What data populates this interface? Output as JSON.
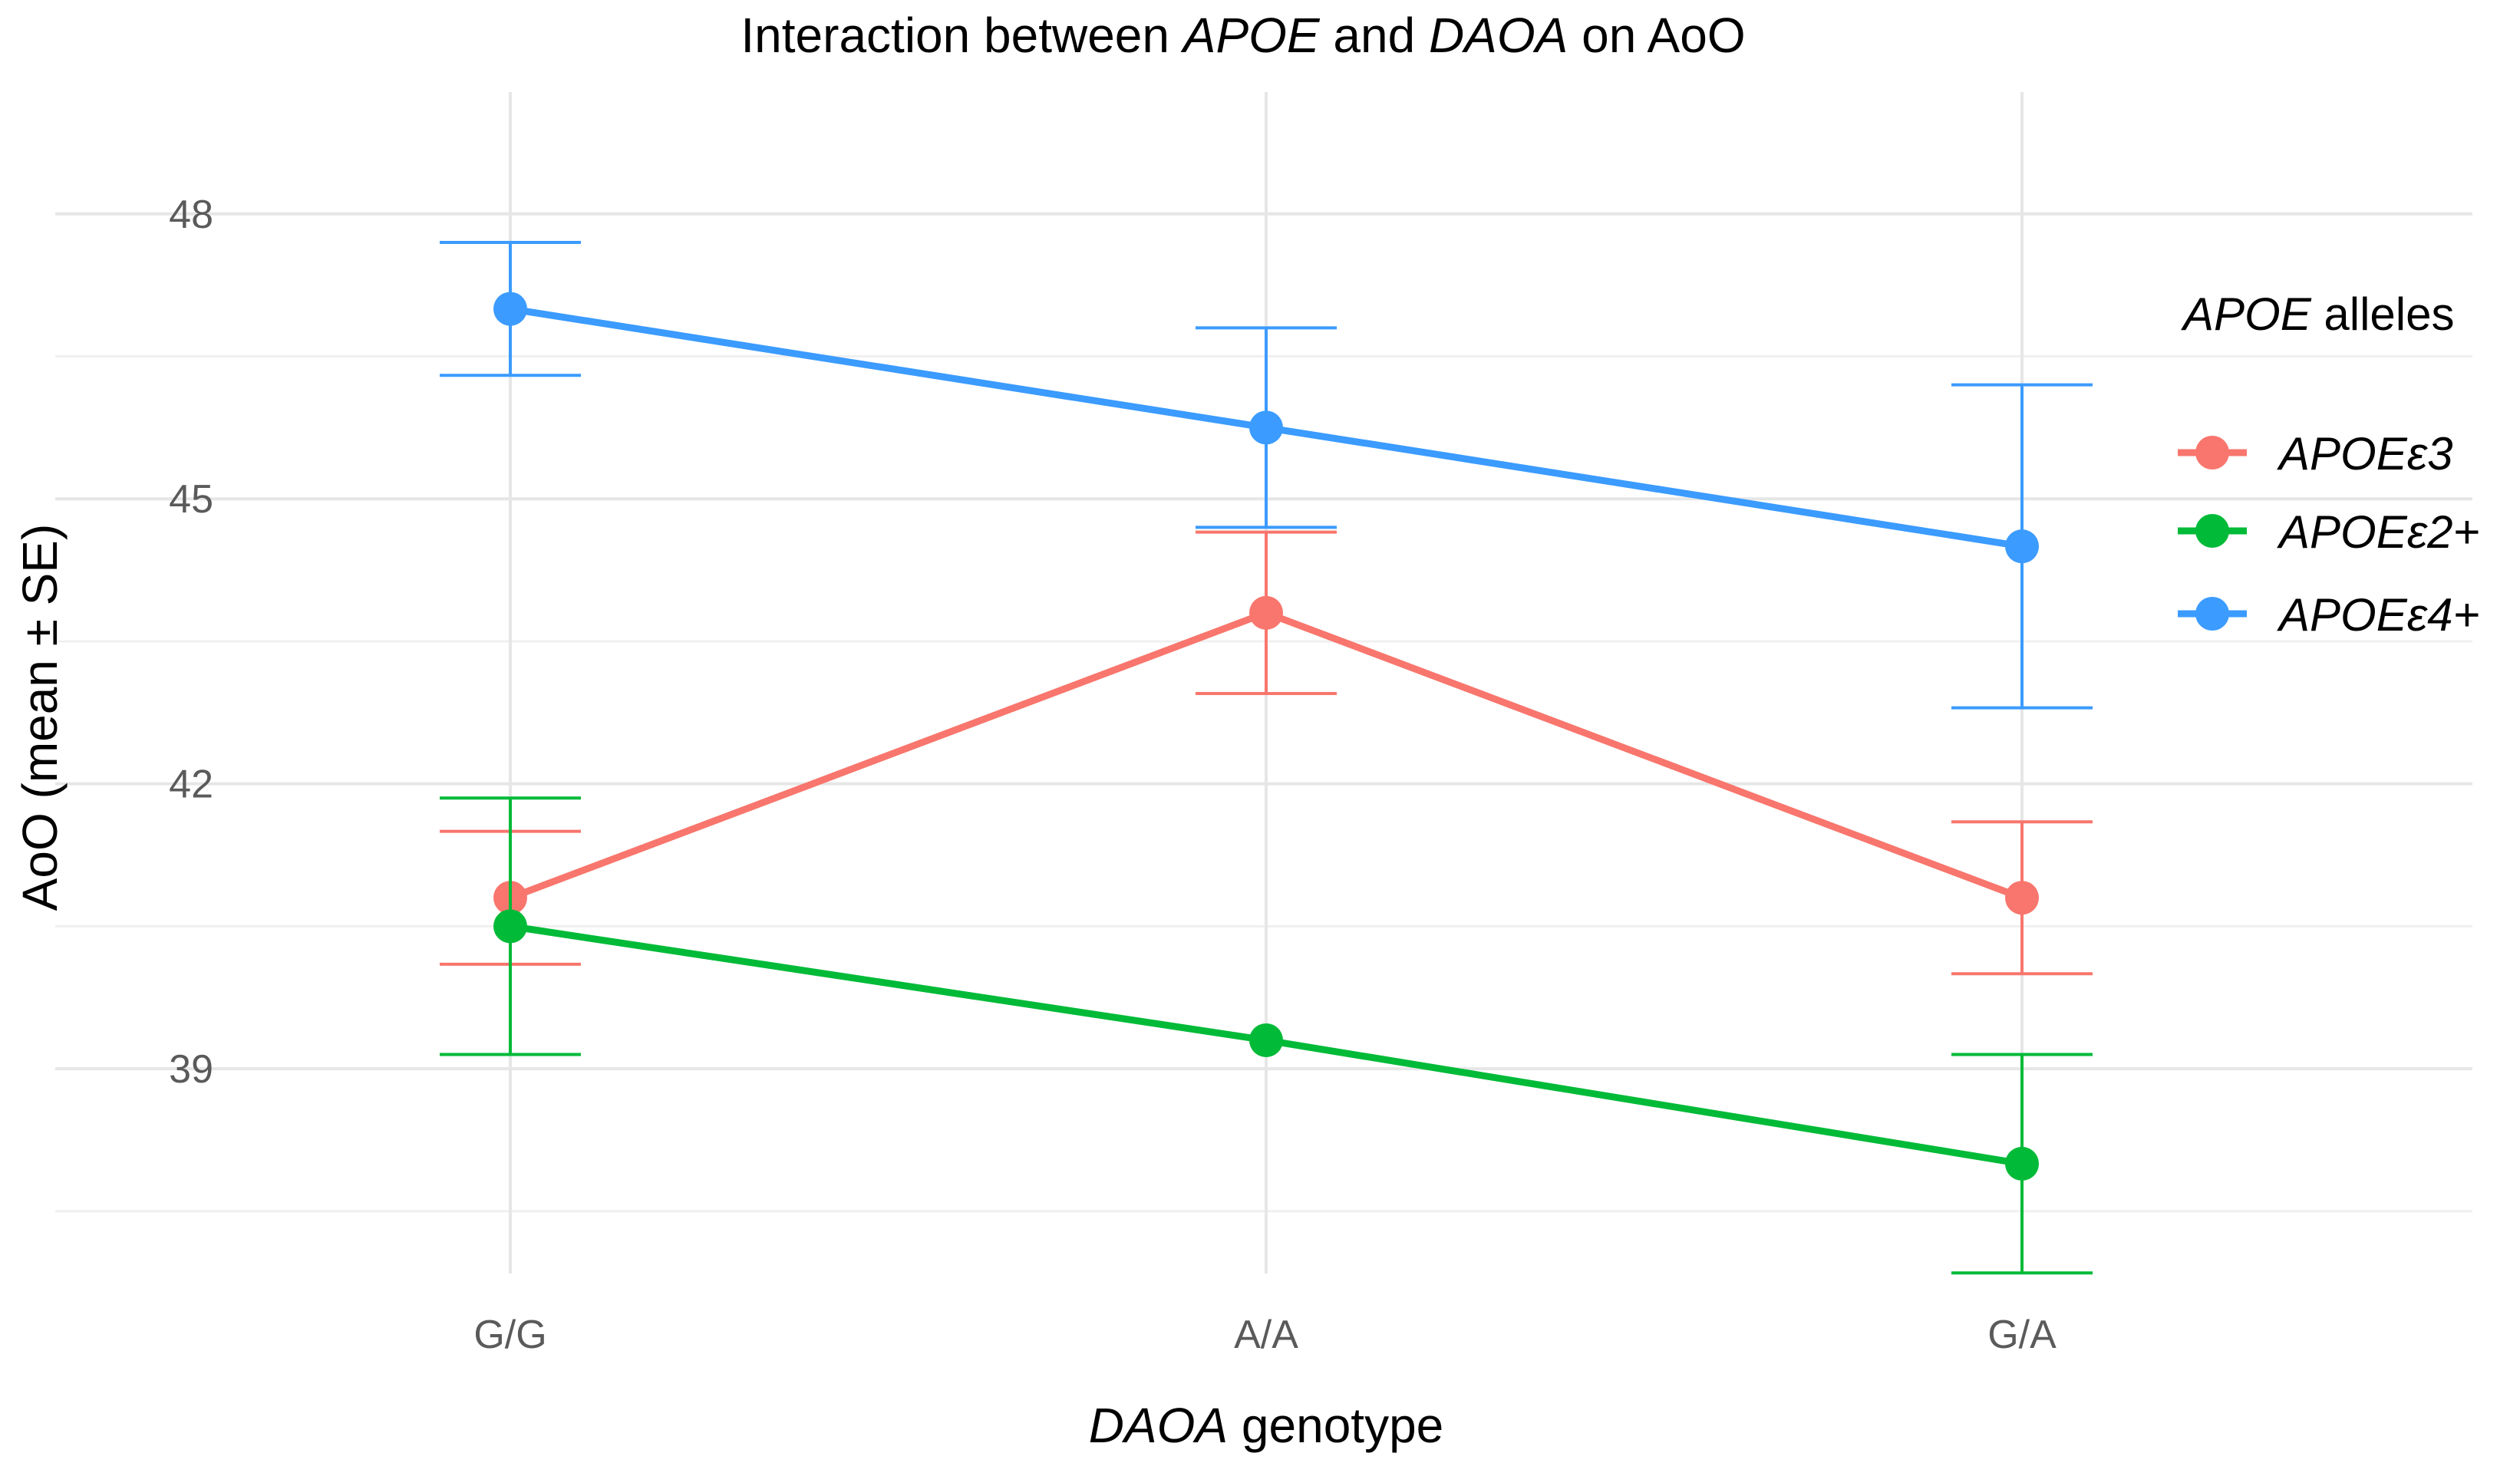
{
  "chart_data": {
    "type": "line",
    "title": {
      "parts": [
        {
          "text": "Interaction between ",
          "italic": false
        },
        {
          "text": "APOE",
          "italic": true
        },
        {
          "text": " and ",
          "italic": false
        },
        {
          "text": "DAOA",
          "italic": true
        },
        {
          "text": " on AoO",
          "italic": false
        }
      ]
    },
    "xlabel": {
      "parts": [
        {
          "text": "DAOA",
          "italic": true
        },
        {
          "text": " genotype",
          "italic": false
        }
      ]
    },
    "ylabel": "AoO (mean ± SE)",
    "categories": [
      "G/G",
      "A/A",
      "G/A"
    ],
    "ylim": [
      36.4,
      49.0
    ],
    "yticks": [
      39,
      42,
      45,
      48
    ],
    "yminor": [
      37.5,
      40.5,
      43.5,
      46.5
    ],
    "grid": true,
    "legend": {
      "title_parts": [
        {
          "text": "APOE",
          "italic": true
        },
        {
          "text": " alleles",
          "italic": false
        }
      ],
      "placement": "right"
    },
    "series": [
      {
        "name": "APOEε3",
        "color": "#F8766D",
        "values": [
          40.8,
          43.8,
          40.8
        ],
        "se": [
          0.7,
          0.85,
          0.8
        ]
      },
      {
        "name": "APOEε2+",
        "color": "#00BA38",
        "values": [
          40.5,
          39.3,
          38.0
        ],
        "se": [
          1.35,
          null,
          1.15
        ]
      },
      {
        "name": "APOEε4+",
        "color": "#3B9BFF",
        "values": [
          47.0,
          45.75,
          44.5
        ],
        "se": [
          0.7,
          1.05,
          1.7
        ]
      }
    ]
  }
}
